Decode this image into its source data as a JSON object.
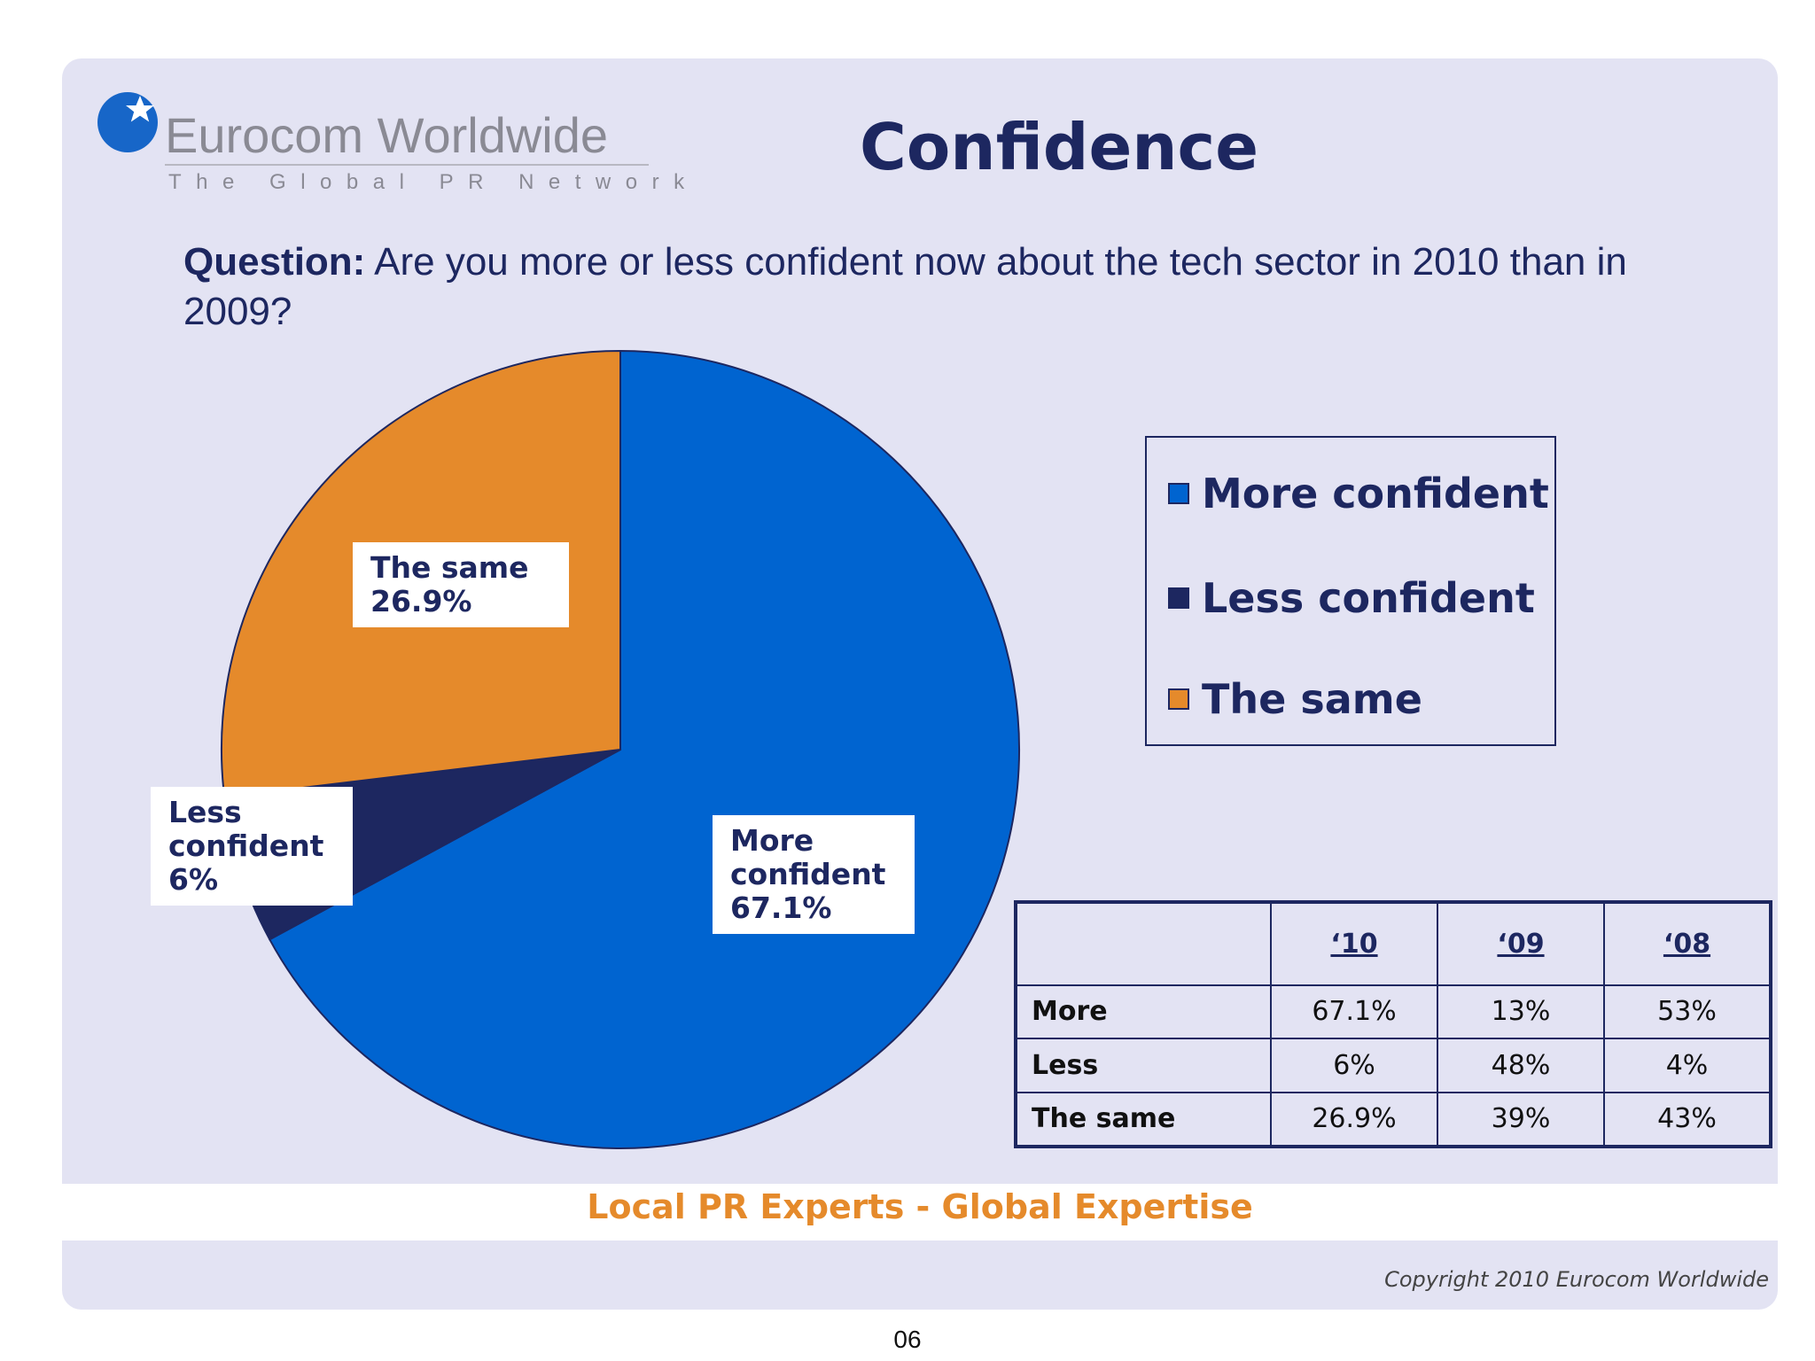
{
  "logo": {
    "name": "Eurocom Worldwide",
    "tagline": "The Global PR Network"
  },
  "title": "Confidence",
  "question": {
    "label": "Question:",
    "text": "Are you more or less confident now about the tech sector in 2010 than in 2009?"
  },
  "chart_data": {
    "type": "pie",
    "title": "",
    "slices": [
      {
        "label": "More confident",
        "value": 67.1,
        "color": "#0064d0",
        "label_line1": "More",
        "label_line2": "confident",
        "label_value": "67.1%"
      },
      {
        "label": "Less confident",
        "value": 6,
        "color": "#1d2760",
        "label_line1": "Less",
        "label_line2": "confident",
        "label_value": "6%"
      },
      {
        "label": "The same",
        "value": 26.9,
        "color": "#e58a2b",
        "label_line1": "The same",
        "label_value": "26.9%"
      }
    ],
    "legend": [
      "More confident",
      "Less confident",
      "The same"
    ],
    "legend_placement": "right",
    "start_angle_deg": 0,
    "direction": "clockwise"
  },
  "table": {
    "headers": [
      "",
      "‘10",
      "‘09",
      "‘08"
    ],
    "rows": [
      {
        "label": "More",
        "values": [
          "67.1%",
          "13%",
          "53%"
        ]
      },
      {
        "label": "Less",
        "values": [
          "6%",
          "48%",
          "4%"
        ]
      },
      {
        "label": "The same",
        "values": [
          "26.9%",
          "39%",
          "43%"
        ]
      }
    ]
  },
  "footer": {
    "tagline": "Local PR Experts - Global Expertise",
    "copyright": "Copyright 2010 Eurocom Worldwide",
    "page_number": "06"
  },
  "colors": {
    "navy": "#1d2760",
    "blue": "#0064d0",
    "orange": "#e58a2b",
    "background": "#e3e3f3"
  }
}
